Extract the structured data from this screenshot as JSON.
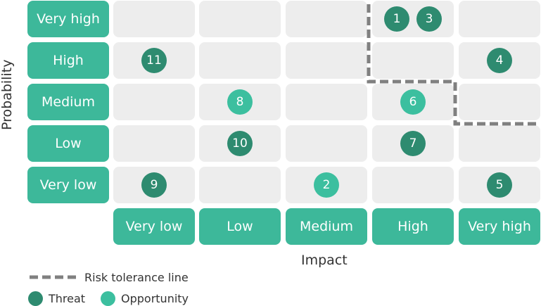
{
  "colors": {
    "label_bg": "#3db89a",
    "cell_bg": "#ededed",
    "threat": "#2e8b70",
    "opportunity": "#3cbf9f",
    "tolerance_line": "#808080"
  },
  "probability_levels": [
    "Very low",
    "Low",
    "Medium",
    "High",
    "Very high"
  ],
  "impact_levels": [
    "Very low",
    "Low",
    "Medium",
    "High",
    "Very high"
  ],
  "axes": {
    "x_title": "Impact",
    "y_title": "Probability"
  },
  "risks": [
    {
      "id": "1",
      "probability": "Very high",
      "impact": "High",
      "kind": "threat"
    },
    {
      "id": "3",
      "probability": "Very high",
      "impact": "High",
      "kind": "threat"
    },
    {
      "id": "11",
      "probability": "High",
      "impact": "Very low",
      "kind": "threat"
    },
    {
      "id": "4",
      "probability": "High",
      "impact": "Very high",
      "kind": "threat"
    },
    {
      "id": "8",
      "probability": "Medium",
      "impact": "Low",
      "kind": "opportunity"
    },
    {
      "id": "6",
      "probability": "Medium",
      "impact": "High",
      "kind": "opportunity"
    },
    {
      "id": "10",
      "probability": "Low",
      "impact": "Low",
      "kind": "threat"
    },
    {
      "id": "7",
      "probability": "Low",
      "impact": "High",
      "kind": "threat"
    },
    {
      "id": "9",
      "probability": "Very low",
      "impact": "Very low",
      "kind": "threat"
    },
    {
      "id": "2",
      "probability": "Very low",
      "impact": "Medium",
      "kind": "opportunity"
    },
    {
      "id": "5",
      "probability": "Very low",
      "impact": "Very high",
      "kind": "threat"
    }
  ],
  "legend": {
    "tolerance_label": "Risk tolerance line",
    "threat_label": "Threat",
    "opportunity_label": "Opportunity"
  }
}
